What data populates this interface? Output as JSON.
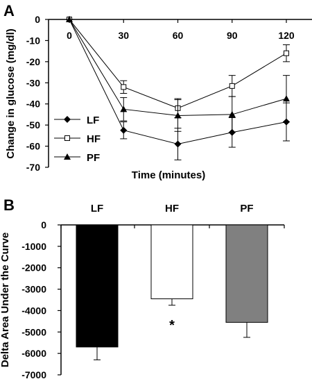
{
  "panels": {
    "a_label": "A",
    "b_label": "B"
  },
  "chart_data": [
    {
      "type": "line",
      "panel": "A",
      "xlabel": "Time (minutes)",
      "ylabel": "Change in glucose (mg/dl)",
      "x": [
        0,
        30,
        60,
        90,
        120
      ],
      "xticks": [
        "0",
        "30",
        "60",
        "90",
        "120"
      ],
      "ylim": [
        -70,
        0
      ],
      "yticks": [
        "0",
        "-10",
        "-20",
        "-30",
        "-40",
        "-50",
        "-60",
        "-70"
      ],
      "legend_position": "left",
      "series": [
        {
          "name": "LF",
          "marker": "diamond-filled",
          "values": [
            0,
            -52.5,
            -59,
            -53.5,
            -48.5
          ],
          "errors": [
            0,
            4,
            7.5,
            7,
            9
          ]
        },
        {
          "name": "HF",
          "marker": "square-open",
          "values": [
            0,
            -32,
            -42,
            -31.5,
            -16
          ],
          "errors": [
            0,
            3,
            4.5,
            5,
            4
          ]
        },
        {
          "name": "PF",
          "marker": "triangle-filled",
          "values": [
            0,
            -42.5,
            -45.5,
            -45,
            -37.5
          ],
          "errors": [
            0,
            5.5,
            7.5,
            8.5,
            11
          ]
        }
      ]
    },
    {
      "type": "bar",
      "panel": "B",
      "ylabel": "Delta Area Under the Curve",
      "categories": [
        "LF",
        "HF",
        "PF"
      ],
      "values": [
        -5700,
        -3450,
        -4550
      ],
      "errors": [
        600,
        300,
        700
      ],
      "colors": [
        "#000000",
        "#ffffff",
        "#808080"
      ],
      "ylim": [
        -7000,
        0
      ],
      "yticks": [
        "0",
        "-1000",
        "-2000",
        "-3000",
        "-4000",
        "-5000",
        "-6000",
        "-7000"
      ],
      "annotation": {
        "category": "HF",
        "text": "*"
      }
    }
  ]
}
